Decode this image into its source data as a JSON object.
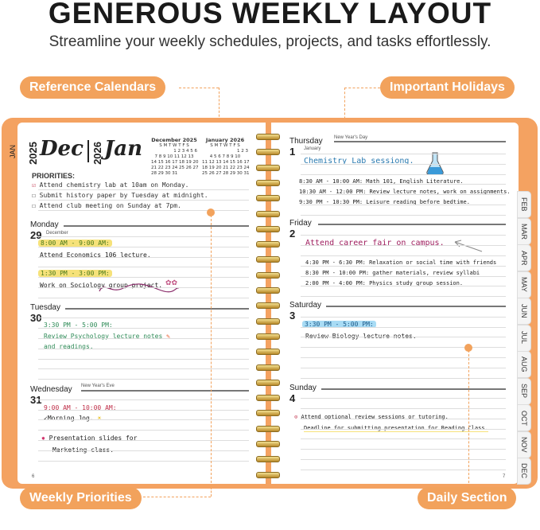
{
  "header": {
    "title": "GENEROUS WEEKLY LAYOUT",
    "subtitle": "Streamline your weekly schedules, projects, and tasks effortlessly."
  },
  "callouts": {
    "reference_calendars": "Reference Calendars",
    "important_holidays": "Important Holidays",
    "weekly_priorities": "Weekly Priorities",
    "daily_section": "Daily Section"
  },
  "colors": {
    "accent": "#f2a25c",
    "highlight": "#f6e27a"
  },
  "left_page": {
    "side_tab": "JAN",
    "year1": "2025",
    "month1": "Dec",
    "year2": "2026",
    "month2": "Jan",
    "mini_calendars": [
      {
        "title": "December 2025",
        "weekdays": "S M T W T F S",
        "rows": [
          "1 2 3 4 5 6",
          "7 8 9 10 11 12 13",
          "14 15 16 17 18 19 20",
          "21 22 23 24 25 26 27",
          "28 29 30 31"
        ]
      },
      {
        "title": "January 2026",
        "weekdays": "S M T W T F S",
        "rows": [
          "1 2 3",
          "4 5 6 7 8 9 10",
          "11 12 13 14 15 16 17",
          "18 19 20 21 22 23 24",
          "25 26 27 28 29 30 31"
        ]
      }
    ],
    "priorities_label": "PRIORITIES:",
    "priorities": [
      {
        "text": "Attend chemistry lab at 10am on Monday.",
        "checked": true
      },
      {
        "text": "Submit history paper by Tuesday at midnight.",
        "checked": false
      },
      {
        "text": "Attend club meeting on Sunday at 7pm.",
        "checked": false
      }
    ],
    "days": [
      {
        "name": "Monday",
        "num": "29",
        "month": "December",
        "holiday": "",
        "entries": [
          "8:00 AM - 9:00 AM:",
          "Attend Economics 106 lecture.",
          "1:30 PM - 3:00 PM:",
          "Work on Sociology group project."
        ]
      },
      {
        "name": "Tuesday",
        "num": "30",
        "month": "",
        "holiday": "",
        "entries": [
          "3:30 PM - 5:00 PM:",
          "Review Psychology lecture notes",
          "and readings."
        ]
      },
      {
        "name": "Wednesday",
        "num": "31",
        "month": "",
        "holiday": "New Year's Eve",
        "entries": [
          "9:00 AM - 10:00 AM:",
          "✓Morning Jog.",
          "Presentation slides for",
          "Marketing class."
        ]
      }
    ],
    "page_number": "6"
  },
  "right_page": {
    "days": [
      {
        "name": "Thursday",
        "num": "1",
        "month": "January",
        "holiday": "New Year's Day",
        "entries": [
          "Chemistry Lab sessiong.",
          "8:30 AM - 10:00 AM:  Math 101, English Literature.",
          "10:30 AM - 12:00 PM: Review lecture notes, work on assignments.",
          "9:30 PM - 10:30 PM:  Leisure reading before bedtime."
        ]
      },
      {
        "name": "Friday",
        "num": "2",
        "month": "",
        "holiday": "",
        "entries": [
          "Attend career fair on campus.",
          "4:30 PM - 6:30 PM: Relaxation or social time with friends",
          "8:30 PM - 10:00 PM: gather materials, review syllabi",
          "2:00 PM - 4:00 PM: Physics study group session."
        ]
      },
      {
        "name": "Saturday",
        "num": "3",
        "month": "",
        "holiday": "",
        "entries": [
          "3:30 PM - 5:00 PM:",
          "Review Biology lecture notes."
        ]
      },
      {
        "name": "Sunday",
        "num": "4",
        "month": "",
        "holiday": "",
        "entries": [
          "Attend optional review sessions or tutoring.",
          "Deadline for submitting presentation for Reading Class."
        ]
      }
    ],
    "page_number": "7",
    "month_tabs": [
      "FEB",
      "MAR",
      "APR",
      "MAY",
      "JUN",
      "JUL",
      "AUG",
      "SEP",
      "OCT",
      "NOV",
      "DEC"
    ]
  }
}
